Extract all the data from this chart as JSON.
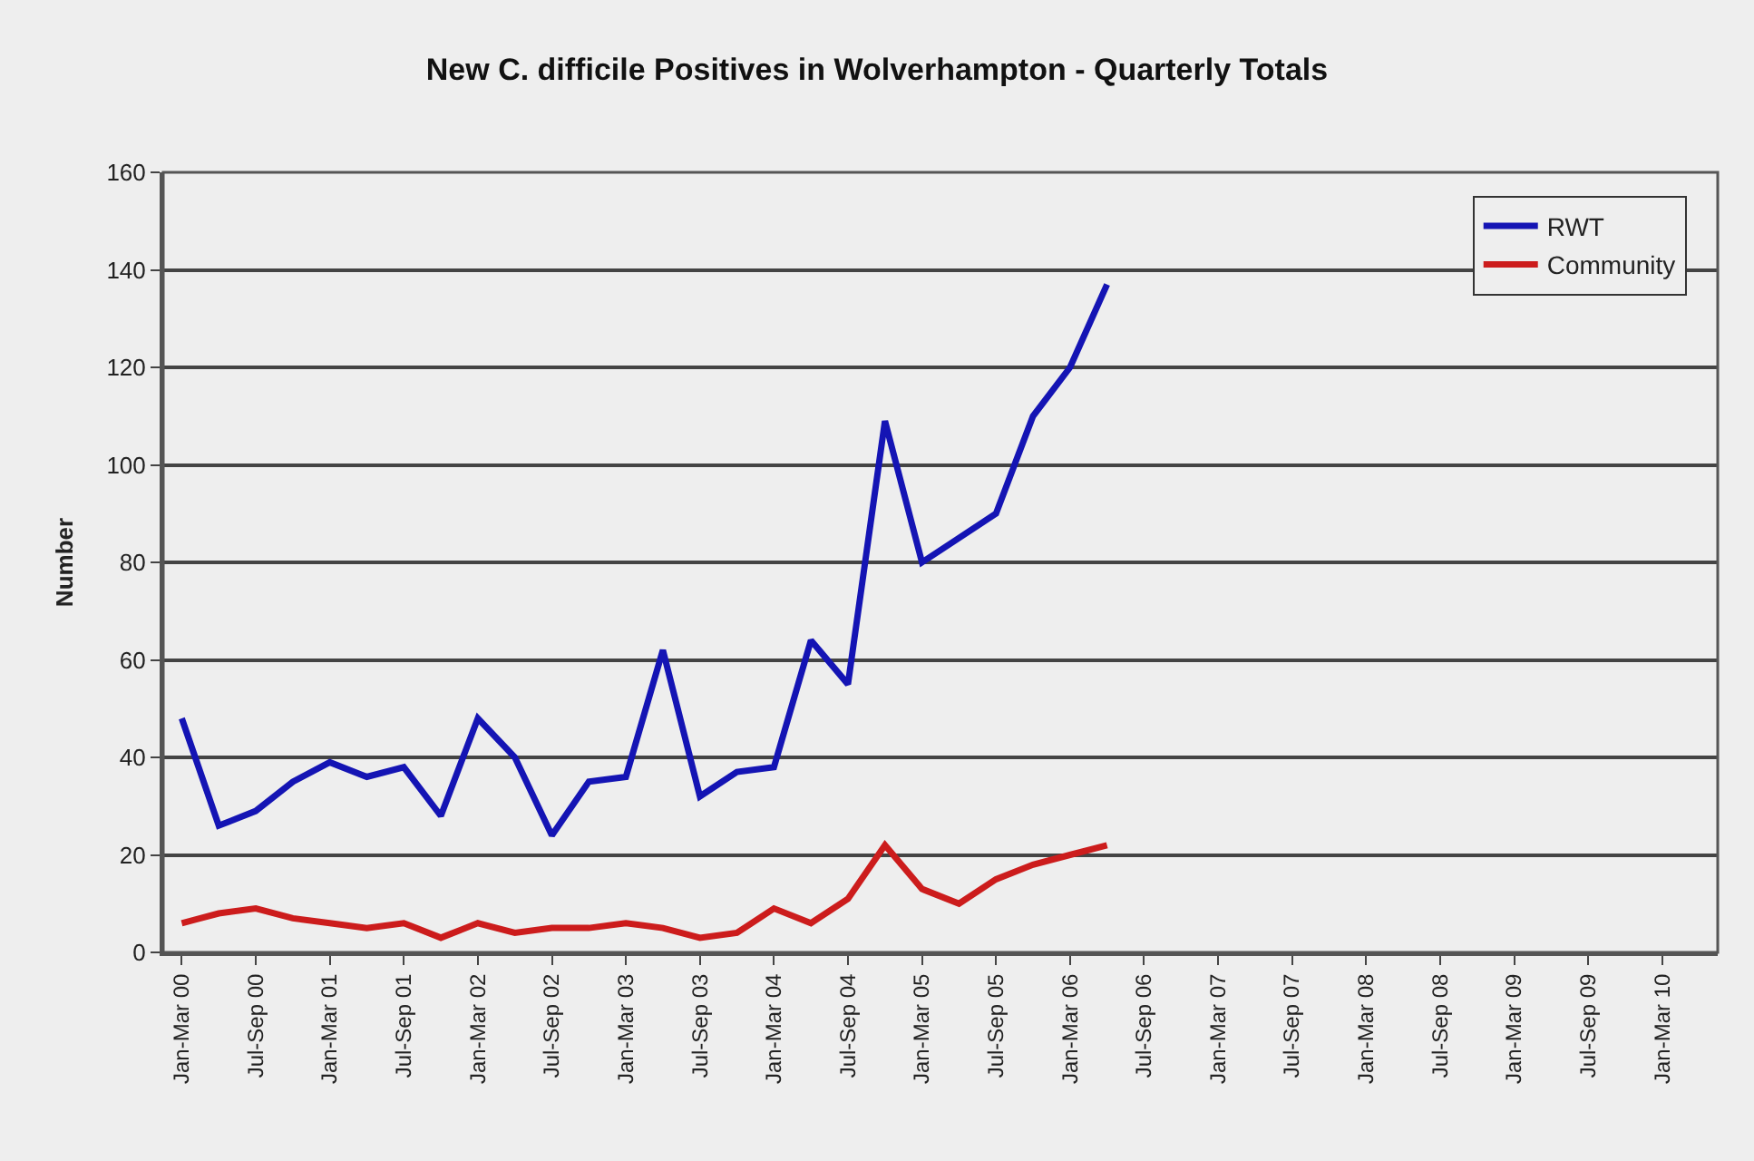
{
  "chart_data": {
    "type": "line",
    "title": "New C. difficile Positives in Wolverhampton - Quarterly Totals",
    "ylabel": "Number",
    "categories": [
      "Jan-Mar 00",
      null,
      "Jul-Sep 00",
      null,
      "Jan-Mar 01",
      null,
      "Jul-Sep 01",
      null,
      "Jan-Mar 02",
      null,
      "Jul-Sep 02",
      null,
      "Jan-Mar 03",
      null,
      "Jul-Sep 03",
      null,
      "Jan-Mar 04",
      null,
      "Jul-Sep 04",
      null,
      "Jan-Mar 05",
      null,
      "Jul-Sep 05",
      null,
      "Jan-Mar 06",
      null,
      "Jul-Sep 06",
      null,
      "Jan-Mar 07",
      null,
      "Jul-Sep 07",
      null,
      "Jan-Mar 08",
      null,
      "Jul-Sep 08",
      null,
      "Jan-Mar 09",
      null,
      "Jul-Sep 09",
      null,
      "Jan-Mar 10",
      null
    ],
    "series": [
      {
        "name": "RWT",
        "color": "#1414b4",
        "values": [
          48,
          26,
          29,
          35,
          39,
          36,
          38,
          28,
          48,
          40,
          24,
          35,
          36,
          62,
          32,
          37,
          38,
          64,
          55,
          109,
          80,
          85,
          90,
          110,
          120,
          137,
          null,
          null,
          null,
          null,
          null,
          null,
          null,
          null,
          null,
          null,
          null,
          null,
          null,
          null,
          null,
          null
        ]
      },
      {
        "name": "Community",
        "color": "#cc1c1c",
        "values": [
          6,
          8,
          9,
          7,
          6,
          5,
          6,
          3,
          6,
          4,
          5,
          5,
          6,
          5,
          3,
          4,
          9,
          6,
          11,
          22,
          13,
          10,
          15,
          18,
          20,
          22,
          null,
          null,
          null,
          null,
          null,
          null,
          null,
          null,
          null,
          null,
          null,
          null,
          null,
          null,
          null,
          null
        ]
      }
    ],
    "ylim": [
      0,
      160
    ],
    "yticks": [
      0,
      20,
      40,
      60,
      80,
      100,
      120,
      140,
      160
    ],
    "grid": "y",
    "legend": "top right",
    "marker": "none",
    "line_style": "solid"
  }
}
